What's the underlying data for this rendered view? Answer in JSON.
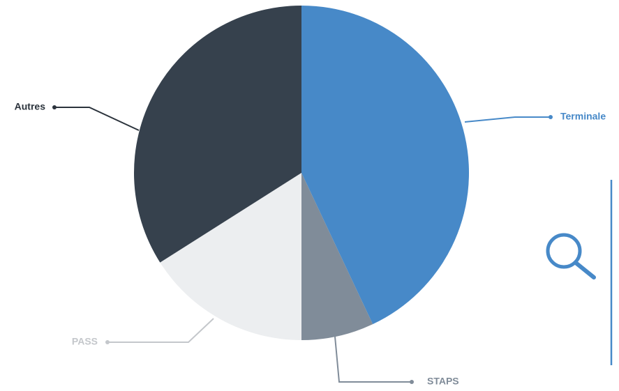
{
  "chart_data": {
    "type": "pie",
    "title": "",
    "categories": [
      "Terminale",
      "STAPS",
      "PASS",
      "Autres"
    ],
    "values": [
      43,
      7,
      16,
      34
    ],
    "colors": [
      "#4789c8",
      "#808c99",
      "#eceef0",
      "#36414d"
    ],
    "label_colors": [
      "#4789c8",
      "#808c99",
      "#c4c7cb",
      "#2b333c"
    ],
    "start_angle_deg": 0,
    "direction": "clockwise",
    "legend": "none"
  },
  "decor": {
    "magnifier_icon": "search-icon",
    "magnifier_color": "#4789c8",
    "side_rule_color": "#4789c8"
  }
}
